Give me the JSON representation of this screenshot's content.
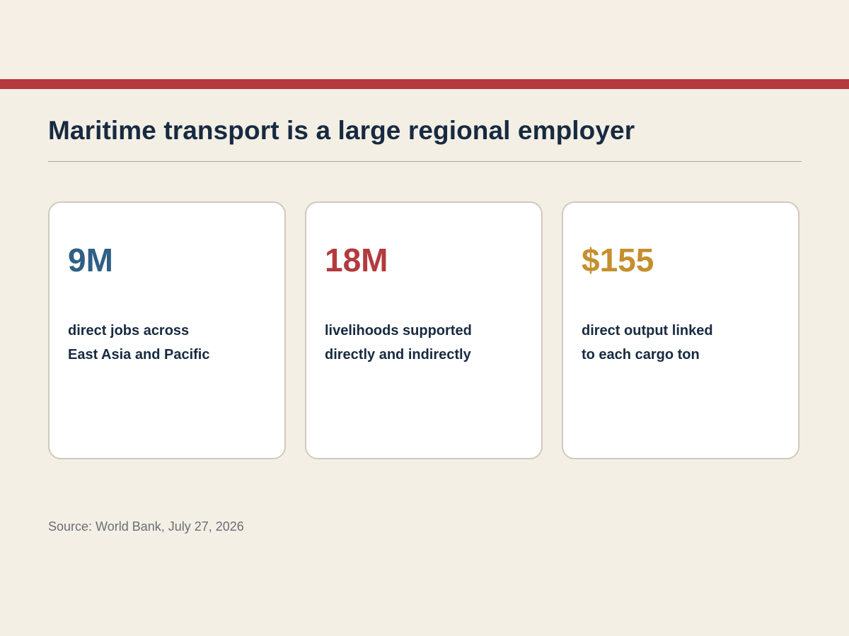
{
  "slide": {
    "title": "Maritime transport is a large regional employer",
    "source": "Source: World Bank, July 27, 2026"
  },
  "cards": [
    {
      "value": "9M",
      "color": "#2f5f86",
      "line1": "direct jobs across",
      "line2": "East Asia and Pacific"
    },
    {
      "value": "18M",
      "color": "#b33a3d",
      "line1": "livelihoods supported",
      "line2": "directly and indirectly"
    },
    {
      "value": "$155",
      "color": "#c58f2e",
      "line1": "direct output linked",
      "line2": "to each cargo ton"
    }
  ],
  "colors": {
    "accent_bar": "#b33a3d",
    "title_text": "#172a40",
    "background": "#f3efe5"
  }
}
